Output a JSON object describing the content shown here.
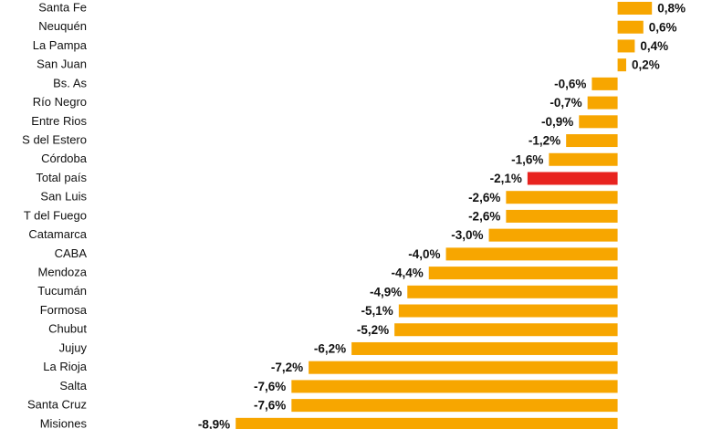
{
  "chart_data": {
    "type": "hbar",
    "categories": [
      "Santa Fe",
      "Neuquén",
      "La Pampa",
      "San Juan",
      "Bs. As",
      "Río Negro",
      "Entre Rios",
      "S del Estero",
      "Córdoba",
      "Total país",
      "San Luis",
      "T del Fuego",
      "Catamarca",
      "CABA",
      "Mendoza",
      "Tucumán",
      "Formosa",
      "Chubut",
      "Jujuy",
      "La Rioja",
      "Salta",
      "Santa Cruz",
      "Misiones"
    ],
    "values": [
      0.8,
      0.6,
      0.4,
      0.2,
      -0.6,
      -0.7,
      -0.9,
      -1.2,
      -1.6,
      -2.1,
      -2.6,
      -2.6,
      -3.0,
      -4.0,
      -4.4,
      -4.9,
      -5.1,
      -5.2,
      -6.2,
      -7.2,
      -7.6,
      -7.6,
      -8.9
    ],
    "value_labels": [
      "0,8%",
      "0,6%",
      "0,4%",
      "0,2%",
      "-0,6%",
      "-0,7%",
      "-0,9%",
      "-1,2%",
      "-1,6%",
      "-2,1%",
      "-2,6%",
      "-2,6%",
      "-3,0%",
      "-4,0%",
      "-4,4%",
      "-4,9%",
      "-5,1%",
      "-5,2%",
      "-6,2%",
      "-7,2%",
      "-7,6%",
      "-7,6%",
      "-8,9%"
    ],
    "colors": [
      "#f7a600",
      "#f7a600",
      "#f7a600",
      "#f7a600",
      "#f7a600",
      "#f7a600",
      "#f7a600",
      "#f7a600",
      "#f7a600",
      "#e8231f",
      "#f7a600",
      "#f7a600",
      "#f7a600",
      "#f7a600",
      "#f7a600",
      "#f7a600",
      "#f7a600",
      "#f7a600",
      "#f7a600",
      "#f7a600",
      "#f7a600",
      "#f7a600",
      "#f7a600"
    ],
    "xlim": [
      -9.5,
      2.2
    ]
  }
}
